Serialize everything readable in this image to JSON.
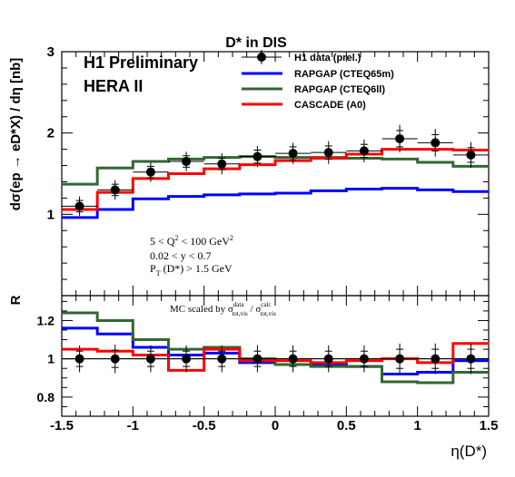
{
  "chart_data": {
    "type": "line",
    "title": "D* in DIS",
    "top_panel": {
      "ylabel": "dσ(ep → eD*X) / dη [nb]",
      "ylim": [
        0,
        3
      ],
      "yticks": [
        1,
        2,
        3
      ],
      "ytick_labels": [
        "1",
        "2",
        "3"
      ],
      "header_lines": [
        "H1 Preliminary",
        "HERA II"
      ],
      "cuts": [
        "5 < Q² < 100 GeV²",
        "0.02 < y < 0.7",
        "P_T (D*) > 1.5 GeV"
      ],
      "legend": {
        "placement": "top-right",
        "entries": [
          {
            "label": "H1 data (prel.)",
            "color": "#000000",
            "kind": "marker"
          },
          {
            "label": "RAPGAP (CTEQ65m)",
            "color": "#0000ff",
            "kind": "line"
          },
          {
            "label": "RAPGAP (CTEQ6ll)",
            "color": "#336633",
            "kind": "line"
          },
          {
            "label": "CASCADE (A0)",
            "color": "#ff0000",
            "kind": "line"
          }
        ]
      }
    },
    "ratio_panel": {
      "ylabel": "R",
      "ylim": [
        0.7,
        1.33
      ],
      "yticks": [
        0.8,
        1.0,
        1.2
      ],
      "ytick_labels": [
        "0.8",
        "1",
        "1.2"
      ],
      "annotation": "MC scaled by σ_tot,vis^data / σ_tot,vis^calc"
    },
    "xlabel": "η(D*)",
    "xlim": [
      -1.5,
      1.5
    ],
    "xticks": [
      -1.5,
      -1,
      -0.5,
      0,
      0.5,
      1,
      1.5
    ],
    "xtick_labels": [
      "-1.5",
      "-1",
      "-0.5",
      "0",
      "0.5",
      "1",
      "1.5"
    ],
    "bin_edges": [
      -1.5,
      -1.25,
      -1.0,
      -0.75,
      -0.5,
      -0.25,
      0.0,
      0.25,
      0.5,
      0.75,
      1.0,
      1.25,
      1.5
    ],
    "data": {
      "name": "H1 data (prel.)",
      "x": [
        -1.375,
        -1.125,
        -0.875,
        -0.625,
        -0.375,
        -0.125,
        0.125,
        0.375,
        0.625,
        0.875,
        1.125,
        1.375
      ],
      "y": [
        1.1,
        1.3,
        1.52,
        1.65,
        1.62,
        1.71,
        1.75,
        1.76,
        1.78,
        1.93,
        1.88,
        1.73
      ],
      "stat_err": [
        0.07,
        0.07,
        0.07,
        0.07,
        0.07,
        0.08,
        0.08,
        0.08,
        0.08,
        0.1,
        0.1,
        0.09
      ],
      "tot_err": [
        0.12,
        0.12,
        0.12,
        0.12,
        0.13,
        0.13,
        0.13,
        0.14,
        0.14,
        0.17,
        0.17,
        0.16
      ],
      "ratio_y": [
        1.0,
        1.0,
        1.0,
        1.0,
        1.0,
        1.0,
        1.0,
        1.0,
        1.0,
        1.0,
        1.0,
        1.0
      ],
      "ratio_stat_err": [
        0.04,
        0.045,
        0.04,
        0.04,
        0.04,
        0.04,
        0.04,
        0.04,
        0.04,
        0.05,
        0.05,
        0.05
      ],
      "ratio_tot_err": [
        0.07,
        0.075,
        0.07,
        0.07,
        0.07,
        0.07,
        0.07,
        0.07,
        0.07,
        0.08,
        0.08,
        0.08
      ]
    },
    "series": [
      {
        "name": "RAPGAP (CTEQ65m)",
        "color": "#0000ff",
        "values": [
          0.96,
          1.06,
          1.19,
          1.22,
          1.24,
          1.25,
          1.26,
          1.29,
          1.31,
          1.32,
          1.3,
          1.28
        ],
        "ratio": [
          1.16,
          1.13,
          1.06,
          1.02,
          1.03,
          0.98,
          0.97,
          0.97,
          0.96,
          0.92,
          0.93,
          0.99
        ]
      },
      {
        "name": "RAPGAP (CTEQ6ll)",
        "color": "#336633",
        "values": [
          1.37,
          1.57,
          1.65,
          1.68,
          1.7,
          1.71,
          1.7,
          1.7,
          1.69,
          1.68,
          1.64,
          1.59
        ],
        "ratio": [
          1.24,
          1.2,
          1.1,
          1.05,
          1.06,
          1.0,
          0.97,
          0.96,
          0.96,
          0.88,
          0.875,
          0.93
        ]
      },
      {
        "name": "CASCADE (A0)",
        "color": "#ff0000",
        "values": [
          1.06,
          1.27,
          1.44,
          1.5,
          1.56,
          1.61,
          1.66,
          1.69,
          1.74,
          1.8,
          1.8,
          1.79
        ],
        "ratio": [
          1.05,
          1.04,
          1.02,
          0.94,
          1.05,
          0.99,
          0.99,
          0.98,
          0.99,
          1.0,
          0.98,
          1.08
        ]
      }
    ]
  }
}
